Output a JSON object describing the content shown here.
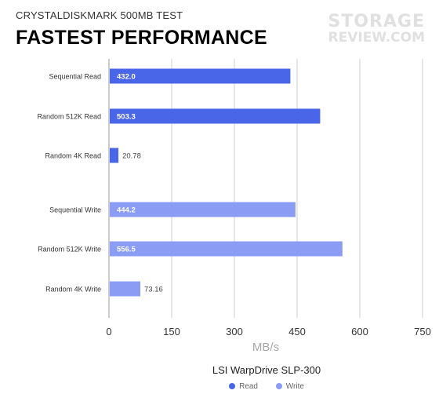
{
  "header": {
    "subtitle": "CRYSTALDISKMARK 500MB TEST",
    "title": "FASTEST PERFORMANCE",
    "logo_line1": "STORAGE",
    "logo_line2": "REVIEW.COM"
  },
  "colors": {
    "read": "#4a66e8",
    "write": "#8b9cf4",
    "grid": "#cccccc"
  },
  "chart_data": {
    "type": "bar",
    "orientation": "horizontal",
    "title": "FASTEST PERFORMANCE",
    "subtitle": "CRYSTALDISKMARK 500MB TEST",
    "categories": [
      "Sequential Read",
      "Random 512K Read",
      "Random 4K Read",
      "Sequential Write",
      "Random 512K Write",
      "Random 4K Write"
    ],
    "values": [
      432.0,
      503.3,
      20.78,
      444.2,
      556.5,
      73.16
    ],
    "labels": [
      "432.0",
      "503.3",
      "20.78",
      "444.2",
      "556.5",
      "73.16"
    ],
    "series_of": [
      "Read",
      "Read",
      "Read",
      "Write",
      "Write",
      "Write"
    ],
    "xlabel": "MB/s",
    "xlim": [
      0,
      750
    ],
    "xticks": [
      "0",
      "150",
      "300",
      "450",
      "600",
      "750"
    ],
    "grid": true,
    "legend": {
      "title": "LSI WarpDrive SLP-300",
      "placement": "bottom",
      "items": [
        {
          "name": "Read",
          "color": "#4a66e8"
        },
        {
          "name": "Write",
          "color": "#8b9cf4"
        }
      ]
    }
  }
}
